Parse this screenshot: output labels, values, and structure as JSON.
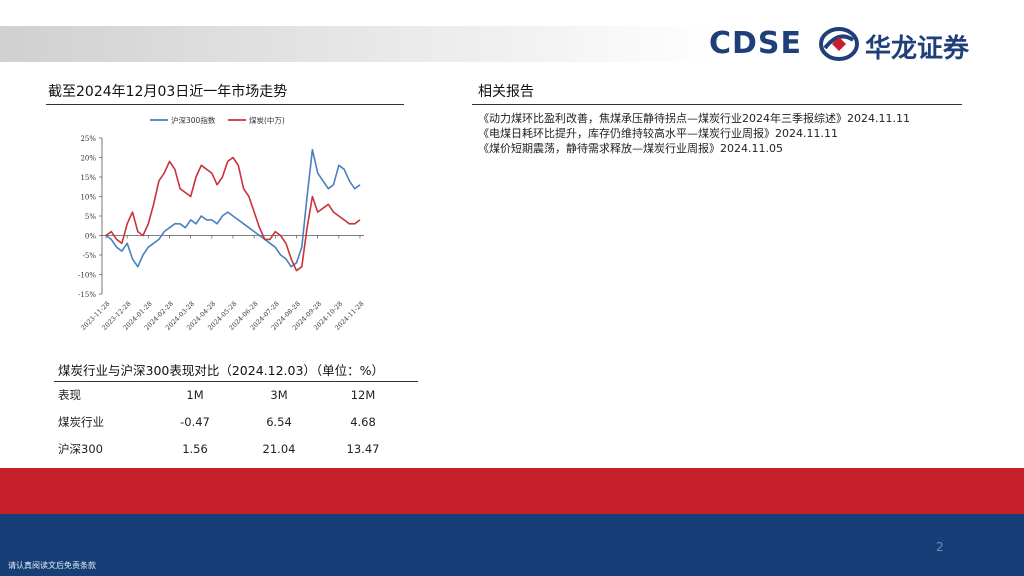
{
  "logo": {
    "latin": "CDSE",
    "chinese": "华龙证券",
    "icon": "hualong-emblem-icon"
  },
  "left_title": "截至2024年12月03日近一年市场走势",
  "right_title": "相关报告",
  "reports": [
    "《动力煤环比盈利改善，焦煤承压静待拐点—煤炭行业2024年三季报综述》2024.11.11",
    "《电煤日耗环比提升，库存仍维持较高水平—煤炭行业周报》2024.11.11",
    "《煤价短期震荡，静待需求释放—煤炭行业周报》2024.11.05"
  ],
  "chart_data": {
    "type": "line",
    "legend": [
      "沪深300指数",
      "煤炭(中万)"
    ],
    "legend_position": "top",
    "y_ticks": [
      "25%",
      "20%",
      "15%",
      "10%",
      "5%",
      "0%",
      "-5%",
      "-10%",
      "-15%"
    ],
    "ylim": [
      -15,
      25
    ],
    "x_ticks": [
      "2023-11-28",
      "2023-12-28",
      "2024-01-28",
      "2024-02-28",
      "2024-03-28",
      "2024-04-28",
      "2024-05-28",
      "2024-06-28",
      "2024-07-28",
      "2024-08-28",
      "2024-09-28",
      "2024-10-28",
      "2024-11-28"
    ],
    "grid": false,
    "series": [
      {
        "name": "沪深300指数",
        "color": "#4a7fc1",
        "values": [
          0,
          -1,
          -3,
          -4,
          -2,
          -6,
          -8,
          -5,
          -3,
          -2,
          -1,
          1,
          2,
          3,
          3,
          2,
          4,
          3,
          5,
          4,
          4,
          3,
          5,
          6,
          5,
          4,
          3,
          2,
          1,
          0,
          -1,
          -2,
          -3,
          -5,
          -6,
          -8,
          -7,
          -3,
          10,
          22,
          16,
          14,
          12,
          13,
          18,
          17,
          14,
          12,
          13
        ]
      },
      {
        "name": "煤炭(中万)",
        "color": "#c8323a",
        "values": [
          0,
          1,
          -1,
          -2,
          3,
          6,
          1,
          0,
          3,
          8,
          14,
          16,
          19,
          17,
          12,
          11,
          10,
          15,
          18,
          17,
          16,
          13,
          15,
          19,
          20,
          18,
          12,
          10,
          6,
          2,
          -1,
          -1,
          1,
          0,
          -2,
          -6,
          -9,
          -8,
          2,
          10,
          6,
          7,
          8,
          6,
          5,
          4,
          3,
          3,
          4
        ]
      }
    ]
  },
  "table": {
    "title": "煤炭行业与沪深300表现对比（2024.12.03）（单位：%）",
    "headers": [
      "表现",
      "1M",
      "3M",
      "12M"
    ],
    "rows": [
      [
        "煤炭行业",
        "-0.47",
        "6.54",
        "4.68"
      ],
      [
        "沪深300",
        "1.56",
        "21.04",
        "13.47"
      ]
    ]
  },
  "page_number": "2",
  "footer": "请认真阅读文后免责条款",
  "colors": {
    "brand_blue": "#1f3f7a",
    "brand_red": "#c8202a",
    "band_blue": "#173f77"
  }
}
